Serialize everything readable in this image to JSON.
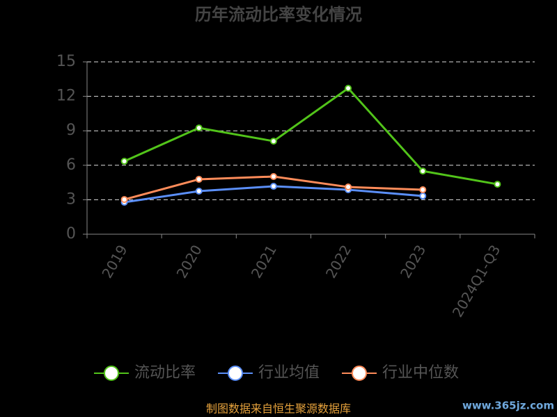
{
  "chart_data": {
    "type": "line",
    "title": "历年流动比率变化情况",
    "categories": [
      "2019",
      "2020",
      "2021",
      "2022",
      "2023",
      "2024Q1-Q3"
    ],
    "series": [
      {
        "name": "流动比率",
        "color": "#52c41a",
        "values": [
          6.35,
          9.25,
          8.1,
          12.7,
          5.5,
          4.35
        ]
      },
      {
        "name": "行业均值",
        "color": "#5b8ff9",
        "values": [
          2.78,
          3.75,
          4.17,
          3.87,
          3.33,
          null
        ]
      },
      {
        "name": "行业中位数",
        "color": "#ff8c5a",
        "values": [
          3.02,
          4.78,
          5.02,
          4.11,
          3.87,
          null
        ]
      }
    ],
    "ylim": [
      0,
      15
    ],
    "yticks": [
      0,
      3,
      6,
      9,
      12,
      15
    ],
    "grid": true,
    "source": "制图数据来自恒生聚源数据库",
    "watermark": "www.365jz.com"
  }
}
